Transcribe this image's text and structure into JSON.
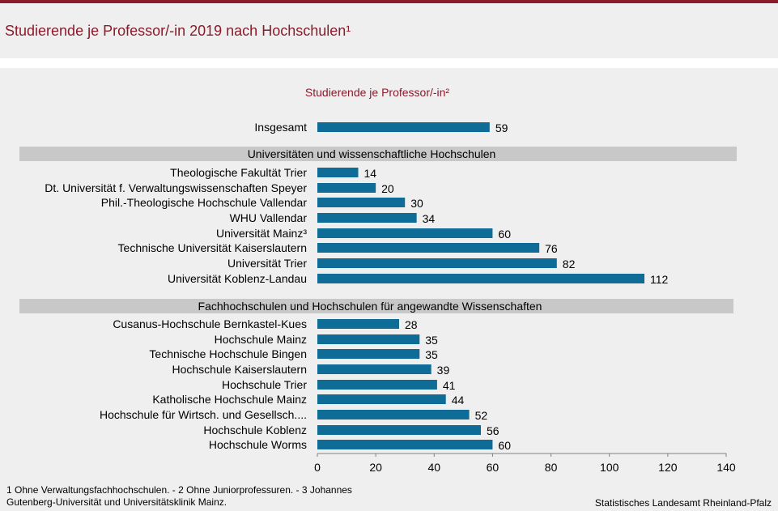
{
  "header": {
    "title": "Studierende je Professor/-in 2019 nach Hochschulen¹"
  },
  "chart_data": {
    "type": "bar",
    "orientation": "horizontal",
    "title": "Studierende je Professor/-in²",
    "xlim": [
      0,
      140
    ],
    "xticks": [
      0,
      20,
      40,
      60,
      80,
      100,
      120,
      140
    ],
    "bar_color": "#0e6c96",
    "group_band_color": "#c8c8c8",
    "title_color": "#8b1a2b",
    "rows": [
      {
        "kind": "bar",
        "label": "Insgesamt",
        "value": 59
      },
      {
        "kind": "group",
        "label": "Universitäten  und  wissenschaftliche  Hochschulen"
      },
      {
        "kind": "bar",
        "label": "Theologische Fakultät Trier",
        "value": 14
      },
      {
        "kind": "bar",
        "label": "Dt. Universität f. Verwaltungswissenschaften Speyer",
        "value": 20
      },
      {
        "kind": "bar",
        "label": "Phil.-Theologische Hochschule Vallendar",
        "value": 30
      },
      {
        "kind": "bar",
        "label": "WHU Vallendar",
        "value": 34
      },
      {
        "kind": "bar",
        "label": "Universität Mainz³",
        "value": 60
      },
      {
        "kind": "bar",
        "label": "Technische Universität Kaiserslautern",
        "value": 76
      },
      {
        "kind": "bar",
        "label": "Universität Trier",
        "value": 82
      },
      {
        "kind": "bar",
        "label": "Universität Koblenz-Landau",
        "value": 112
      },
      {
        "kind": "group",
        "label": "Fachhochschulen  und  Hochschulen  für  angewandte  Wissenschaften"
      },
      {
        "kind": "bar",
        "label": "Cusanus-Hochschule Bernkastel-Kues",
        "value": 28
      },
      {
        "kind": "bar",
        "label": "Hochschule Mainz",
        "value": 35
      },
      {
        "kind": "bar",
        "label": "Technische Hochschule Bingen",
        "value": 35
      },
      {
        "kind": "bar",
        "label": "Hochschule Kaiserslautern",
        "value": 39
      },
      {
        "kind": "bar",
        "label": "Hochschule Trier",
        "value": 41
      },
      {
        "kind": "bar",
        "label": "Katholische Hochschule Mainz",
        "value": 44
      },
      {
        "kind": "bar",
        "label": "Hochschule für Wirtsch. und Gesellsch....",
        "value": 52
      },
      {
        "kind": "bar",
        "label": "Hochschule Koblenz",
        "value": 56
      },
      {
        "kind": "bar",
        "label": "Hochschule Worms",
        "value": 60
      }
    ]
  },
  "footnote": {
    "line1": "1 Ohne Verwaltungsfachhochschulen.  - 2 Ohne Juniorprofessuren.  - 3 Johannes",
    "line2": "Gutenberg-Universität  und Universitätsklinik Mainz."
  },
  "source": "Statistisches Landesamt Rheinland-Pfalz"
}
